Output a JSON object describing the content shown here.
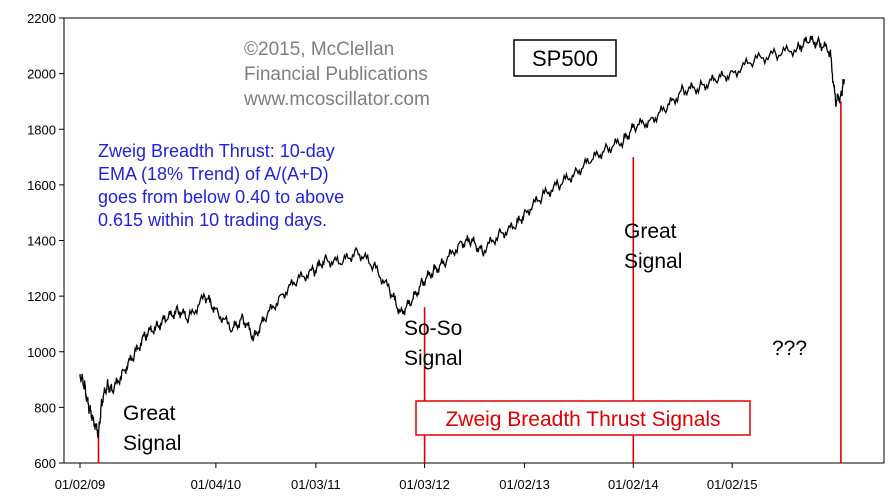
{
  "chart_data": {
    "type": "line",
    "title": "SP500",
    "ylim": [
      600,
      2200
    ],
    "y_ticks": [
      "600",
      "800",
      "1000",
      "1200",
      "1400",
      "1600",
      "1800",
      "2000",
      "2200"
    ],
    "x_ticks": [
      "01/02/09",
      "01/04/10",
      "01/03/11",
      "01/03/12",
      "01/02/13",
      "01/02/14",
      "01/02/15"
    ],
    "x_tick_pos": [
      0,
      1.25,
      2.17,
      3.17,
      4.09,
      5.09,
      6.0
    ],
    "grid": false,
    "series": [
      {
        "name": "",
        "color": "#000000",
        "x": [
          0,
          0.04,
          0.08,
          0.12,
          0.17,
          0.2,
          0.25,
          0.3,
          0.4,
          0.5,
          0.6,
          0.7,
          0.8,
          0.9,
          1.0,
          1.15,
          1.25,
          1.4,
          1.5,
          1.6,
          1.7,
          1.85,
          2.0,
          2.15,
          2.25,
          2.4,
          2.55,
          2.7,
          2.85,
          2.95,
          3.05,
          3.15,
          3.25,
          3.35,
          3.5,
          3.6,
          3.7,
          3.85,
          4.0,
          4.1,
          4.25,
          4.4,
          4.55,
          4.7,
          4.85,
          5.0,
          5.1,
          5.25,
          5.4,
          5.55,
          5.7,
          5.85,
          6.0,
          6.2,
          6.4,
          6.6,
          6.7,
          6.8,
          6.9,
          6.95,
          7.0,
          7.03
        ],
        "values": [
          920,
          880,
          800,
          760,
          700,
          820,
          880,
          860,
          930,
          990,
          1060,
          1090,
          1120,
          1150,
          1120,
          1200,
          1150,
          1080,
          1120,
          1050,
          1120,
          1200,
          1260,
          1290,
          1330,
          1320,
          1360,
          1310,
          1220,
          1140,
          1180,
          1250,
          1290,
          1320,
          1390,
          1400,
          1360,
          1420,
          1450,
          1500,
          1560,
          1600,
          1640,
          1690,
          1730,
          1760,
          1810,
          1830,
          1880,
          1940,
          1950,
          1980,
          2000,
          2050,
          2070,
          2090,
          2120,
          2110,
          2080,
          1900,
          1920,
          1980
        ]
      }
    ],
    "signals": [
      {
        "label": "Great Signal",
        "x": 0.17,
        "value": 700
      },
      {
        "label": "So-So Signal",
        "x": 3.17,
        "value": 1160
      },
      {
        "label": "Great Signal",
        "x": 5.09,
        "value": 1700
      },
      {
        "label": "???",
        "x": 7.0,
        "value": 1900
      }
    ],
    "annotations": {
      "copyright": [
        "©2015, McClellan",
        "Financial Publications",
        "www.mcoscillator.com"
      ],
      "description": [
        "Zweig Breadth Thrust: 10-day",
        "EMA (18% Trend) of A/(A+D)",
        "goes from below 0.40 to above",
        "0.615 within 10 trading days."
      ],
      "signal_labels": [
        [
          "Great",
          "Signal"
        ],
        [
          "So-So",
          "Signal"
        ],
        [
          "Great",
          "Signal"
        ],
        [
          "???"
        ]
      ],
      "legend": "Zweig Breadth Thrust Signals"
    }
  },
  "colors": {
    "series": "#000000",
    "signal": "#e00000",
    "description": "#2222dd",
    "copyright": "#7f7f7f"
  }
}
